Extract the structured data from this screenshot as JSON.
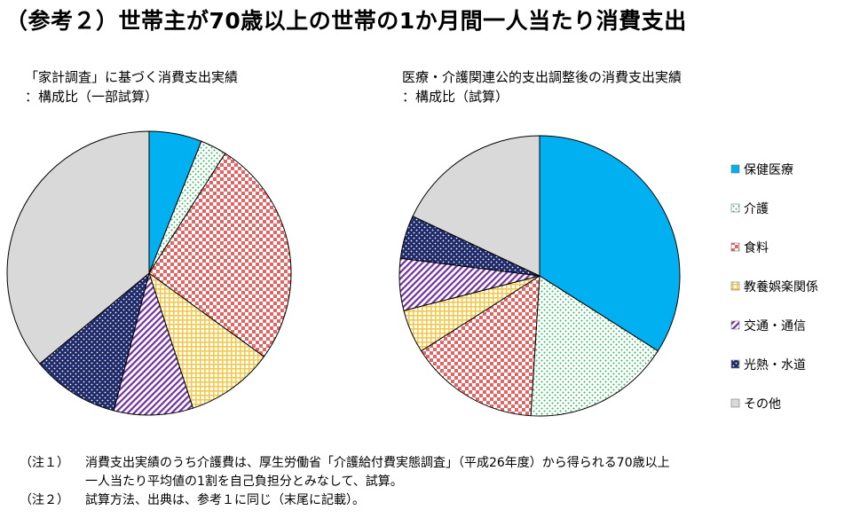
{
  "title": "（参考２）世帯主が70歳以上の世帯の1か月間一人当たり消費支出",
  "chart_data": [
    {
      "type": "pie",
      "title": "「家計調査」に基づく消費支出実績",
      "subtitle": "：構成比（一部試算）",
      "categories": [
        "保健医療",
        "介護",
        "食料",
        "教養娯楽関係",
        "交通・通信",
        "光熱・水道",
        "その他"
      ],
      "values": [
        6,
        3,
        26,
        10,
        9,
        10,
        36
      ],
      "start_angle_deg": 0,
      "direction": "clockwise"
    },
    {
      "type": "pie",
      "title": "医療・介護関連公的支出調整後の消費支出実績",
      "subtitle": "：構成比（試算）",
      "categories": [
        "保健医療",
        "介護",
        "食料",
        "教養娯楽関係",
        "交通・通信",
        "光熱・水道",
        "その他"
      ],
      "values": [
        34,
        17,
        15,
        5,
        6,
        5,
        18
      ],
      "start_angle_deg": 0,
      "direction": "clockwise"
    }
  ],
  "legend": {
    "placement": "right",
    "items": [
      {
        "label": "保健医療",
        "color": "#00B0F0",
        "pattern": "solid"
      },
      {
        "label": "介護",
        "color": "#33B25E",
        "pattern": "dots"
      },
      {
        "label": "食料",
        "color": "#E06666",
        "pattern": "check"
      },
      {
        "label": "教養娯楽関係",
        "color": "#F2C94C",
        "pattern": "grid"
      },
      {
        "label": "交通・通信",
        "color": "#7030A0",
        "pattern": "diagonal"
      },
      {
        "label": "光熱・水道",
        "color": "#1F2A6B",
        "pattern": "dark-dots"
      },
      {
        "label": "その他",
        "color": "#D9D9D9",
        "pattern": "solid"
      }
    ]
  },
  "notes": [
    {
      "label": "（注１）",
      "lines": [
        "消費支出実績のうち介護費は、厚生労働省「介護給付費実態調査」（平成26年度）から得られる70歳以上",
        "一人当たり平均値の1割を自己負担分とみなして、試算。"
      ]
    },
    {
      "label": "（注２）",
      "lines": [
        "試算方法、出典は、参考１に同じ（末尾に記載）。"
      ]
    }
  ]
}
